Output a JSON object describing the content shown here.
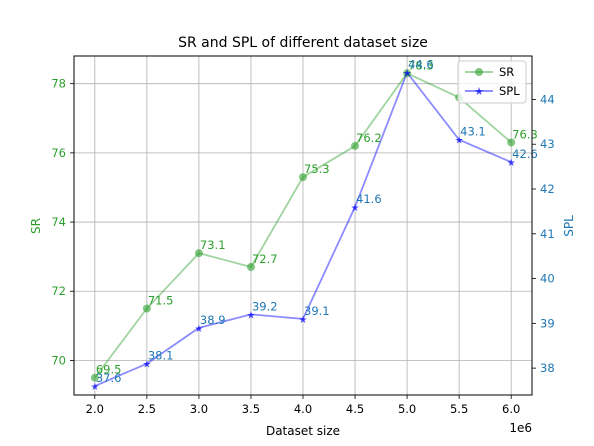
{
  "chart_data": {
    "type": "line",
    "title": "SR and SPL of different dataset size",
    "xlabel": "Dataset size",
    "x_offset_label": "1e6",
    "x": [
      2.0,
      2.5,
      3.0,
      3.5,
      4.0,
      4.5,
      5.0,
      5.5,
      6.0
    ],
    "x_ticks": [
      "2.0",
      "2.5",
      "3.0",
      "3.5",
      "4.0",
      "4.5",
      "5.0",
      "5.5",
      "6.0"
    ],
    "xlim": [
      1.8,
      6.2
    ],
    "grid": true,
    "legend_position": "top-right",
    "left_axis": {
      "label": "SR",
      "color": "#2ca02c",
      "ylim": [
        69.0,
        78.8
      ],
      "ticks": [
        70,
        72,
        74,
        76,
        78
      ],
      "tick_labels": [
        "70",
        "72",
        "74",
        "76",
        "78"
      ]
    },
    "right_axis": {
      "label": "SPL",
      "color": "#1f77b4",
      "ylim": [
        37.4,
        44.97
      ],
      "ticks": [
        38,
        39,
        40,
        41,
        42,
        43,
        44
      ],
      "tick_labels": [
        "38",
        "39",
        "40",
        "41",
        "42",
        "43",
        "44"
      ]
    },
    "series": [
      {
        "name": "SR",
        "axis": "left",
        "marker": "circle",
        "line_color": "#2ca02c",
        "label_color": "#2ca02c",
        "values": [
          69.5,
          71.5,
          73.1,
          72.7,
          75.3,
          76.2,
          78.3,
          77.6,
          76.3
        ],
        "labels": [
          "69.5",
          "71.5",
          "73.1",
          "72.7",
          "75.3",
          "76.2",
          "78.3",
          "",
          "76.3"
        ]
      },
      {
        "name": "SPL",
        "axis": "right",
        "marker": "star",
        "line_color": "#0000ff",
        "label_color": "#1f77b4",
        "values": [
          37.6,
          38.1,
          38.9,
          39.2,
          39.1,
          41.6,
          44.6,
          43.1,
          42.6
        ],
        "labels": [
          "37.6",
          "38.1",
          "38.9",
          "39.2",
          "39.1",
          "41.6",
          "44.6",
          "43.1",
          "42.6"
        ]
      }
    ]
  }
}
